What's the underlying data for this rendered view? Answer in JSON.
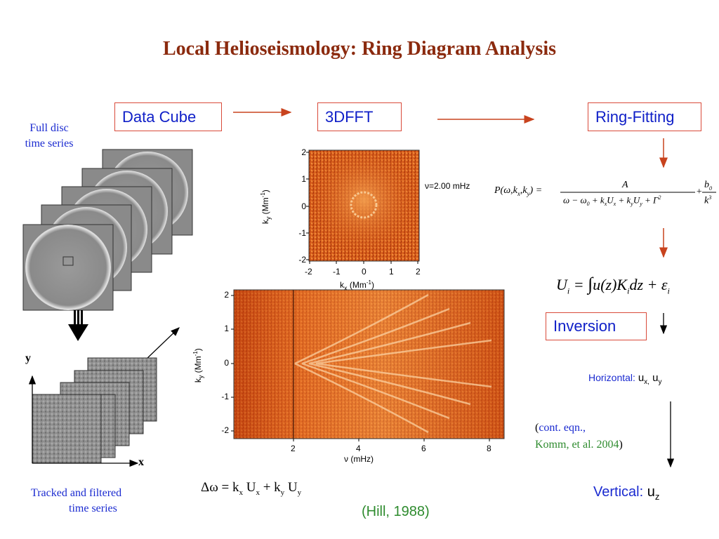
{
  "title": "Local Helioseismology:  Ring Diagram Analysis",
  "labels": {
    "full_disc_line1": "Full disc",
    "full_disc_line2": "time series",
    "tracked_line1": "Tracked  and filtered",
    "tracked_line2": "time series",
    "axis_y": "y",
    "axis_x": "x"
  },
  "boxes": {
    "data_cube": "Data Cube",
    "fft": "3DFFT",
    "ring_fitting": "Ring-Fitting",
    "inversion": "Inversion"
  },
  "small_plot": {
    "freq_label": "ν=2.00 mHz",
    "xticks": [
      "-2",
      "-1",
      "0",
      "1",
      "2"
    ],
    "yticks": [
      "2",
      "1",
      "0",
      "-1",
      "-2"
    ],
    "xlabel": "k",
    "xlabel_sub": "x",
    "xlabel_unit": " (Mm",
    "xlabel_sup": "-1",
    "ylabel": "k",
    "ylabel_sub": "y",
    "ylabel_unit": " (Mm",
    "ylabel_sup": "-1"
  },
  "big_plot": {
    "xticks": [
      "2",
      "4",
      "6",
      "8"
    ],
    "yticks": [
      "2",
      "1",
      "0",
      "-1",
      "-2"
    ],
    "xlabel": "ν (mHz)",
    "ylabel": "k",
    "ylabel_sub": "y",
    "ylabel_unit": " (Mm",
    "ylabel_sup": "-1"
  },
  "equations": {
    "ring_fit_lhs": "P(ω,k",
    "ring_fit_num": "A",
    "ring_fit_den": "ω − ω",
    "ring_fit_b": "b",
    "ring_fit_k": "k",
    "integral_text": "U",
    "delta_omega": "Δω = k",
    "hill": "(Hill, 1988)"
  },
  "results": {
    "horizontal_label": "Horizontal:",
    "horizontal_vars": "u",
    "cont_eqn_line1": "(",
    "cont_eqn_green1": "cont. eqn.,",
    "komm": "Komm, et al. 2004",
    "close_paren": ")",
    "vertical_label": "Vertical:",
    "vertical_var": "u",
    "vertical_sub": "z"
  },
  "colors": {
    "title": "#8b2a0e",
    "box_border": "#d94a3a",
    "box_text": "#1020c8",
    "arrow": "#c8431e",
    "green": "#2e8b2e"
  }
}
